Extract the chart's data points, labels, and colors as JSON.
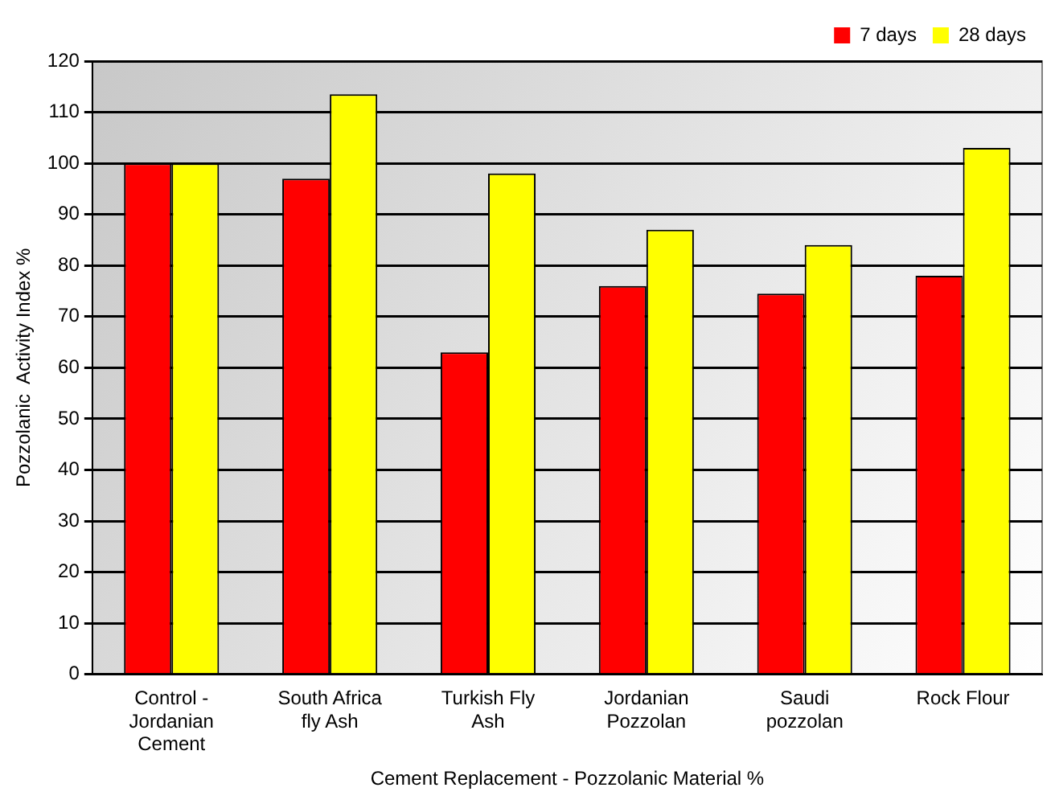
{
  "chart_data": {
    "type": "bar",
    "xlabel": "Cement Replacement - Pozzolanic Material %",
    "ylabel": "Pozzolanic  Activity Index %",
    "categories": [
      "Control - Jordanian Cement",
      "South Africa fly Ash",
      "Turkish Fly Ash",
      "Jordanian Pozzolan",
      "Saudi pozzolan",
      "Rock Flour"
    ],
    "series": [
      {
        "name": "7 days",
        "color": "#ff0000",
        "values": [
          100,
          97,
          63,
          76,
          74.5,
          78
        ]
      },
      {
        "name": "28 days",
        "color": "#ffff00",
        "values": [
          100,
          113.5,
          98,
          87,
          84,
          103
        ]
      }
    ],
    "ylim": [
      0,
      120
    ],
    "yticks": [
      0,
      10,
      20,
      30,
      40,
      50,
      60,
      70,
      80,
      90,
      100,
      110,
      120
    ],
    "grid": "y",
    "legend": "top right"
  }
}
